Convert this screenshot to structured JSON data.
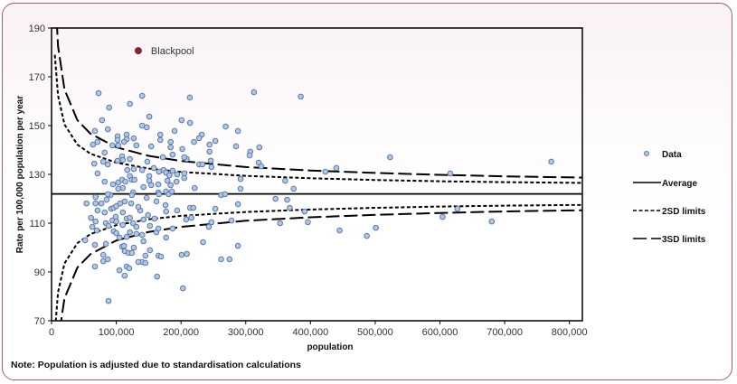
{
  "chart_data": {
    "type": "scatter",
    "xlabel": "population",
    "ylabel": "Rate per 100,000 population per year",
    "note": "Note: Population is adjusted due to standardisation calculations",
    "xlim": [
      0,
      820000
    ],
    "ylim": [
      70,
      190
    ],
    "x_ticks": [
      0,
      100000,
      200000,
      300000,
      400000,
      500000,
      600000,
      700000,
      800000
    ],
    "x_tick_labels": [
      "0",
      "100,000",
      "200,000",
      "300,000",
      "400,000",
      "500,000",
      "600,000",
      "700,000",
      "800,000"
    ],
    "y_ticks": [
      70,
      90,
      110,
      130,
      150,
      170,
      190
    ],
    "y_tick_labels": [
      "70",
      "90",
      "110",
      "130",
      "150",
      "170",
      "190"
    ],
    "grid": false,
    "legend_position": "right",
    "legend": {
      "data": "Data",
      "average": "Average",
      "sd2": "2SD limits",
      "sd3": "3SD limits"
    },
    "colors": {
      "point_fill": "#b3c7e3",
      "point_stroke": "#5a7aa8",
      "highlight": "#7b2a35",
      "lines": "#000000"
    },
    "highlight": {
      "label": "Blackpool",
      "x": 134000,
      "y": 180.7
    },
    "average": 122,
    "limits": {
      "population": [
        5000,
        10000,
        20000,
        40000,
        60000,
        100000,
        150000,
        200000,
        300000,
        400000,
        500000,
        600000,
        700000,
        820000
      ],
      "upper_2sd": [
        179.0,
        162.3,
        150.5,
        142.2,
        138.5,
        134.8,
        132.4,
        131.0,
        129.4,
        128.4,
        127.7,
        127.2,
        126.8,
        126.5
      ],
      "lower_2sd": [
        65.0,
        81.7,
        93.5,
        101.8,
        105.5,
        109.2,
        111.6,
        113.0,
        114.6,
        115.6,
        116.3,
        116.8,
        117.2,
        117.5
      ],
      "upper_3sd": [
        207.6,
        182.5,
        164.8,
        152.2,
        146.7,
        141.1,
        137.6,
        135.5,
        133.0,
        131.6,
        130.6,
        129.8,
        129.2,
        128.7
      ],
      "lower_3sd": [
        36.4,
        61.5,
        79.2,
        91.8,
        97.3,
        102.9,
        106.4,
        108.5,
        111.0,
        112.4,
        113.4,
        114.2,
        114.8,
        115.3
      ]
    },
    "points": [
      [
        213600,
        161.5
      ],
      [
        312700,
        163.7
      ],
      [
        385000,
        161.9
      ],
      [
        201000,
        152.2
      ],
      [
        214000,
        151.1
      ],
      [
        269000,
        149.6
      ],
      [
        288000,
        147.8
      ],
      [
        232000,
        146.3
      ],
      [
        228000,
        144.9
      ],
      [
        220000,
        143.3
      ],
      [
        253000,
        143.7
      ],
      [
        244000,
        142.2
      ],
      [
        285000,
        141.5
      ],
      [
        321000,
        141.1
      ],
      [
        202000,
        140.4
      ],
      [
        244000,
        139.3
      ],
      [
        307000,
        139.3
      ],
      [
        306000,
        137.8
      ],
      [
        523000,
        137.0
      ],
      [
        209000,
        136.3
      ],
      [
        246000,
        135.6
      ],
      [
        320000,
        134.8
      ],
      [
        228000,
        134.1
      ],
      [
        233000,
        134.1
      ],
      [
        247000,
        133.0
      ],
      [
        324000,
        133.3
      ],
      [
        423000,
        131.1
      ],
      [
        440000,
        132.6
      ],
      [
        205000,
        130.4
      ],
      [
        205000,
        128.5
      ],
      [
        292000,
        128.1
      ],
      [
        361000,
        127.4
      ],
      [
        221000,
        124.4
      ],
      [
        374000,
        124.1
      ],
      [
        262000,
        121.5
      ],
      [
        268000,
        121.9
      ],
      [
        292000,
        124.1
      ],
      [
        346000,
        120.0
      ],
      [
        364000,
        119.6
      ],
      [
        288000,
        117.8
      ],
      [
        214000,
        116.3
      ],
      [
        219000,
        116.3
      ],
      [
        253000,
        115.9
      ],
      [
        368000,
        116.3
      ],
      [
        391000,
        114.8
      ],
      [
        216000,
        112.2
      ],
      [
        208000,
        111.5
      ],
      [
        247000,
        110.4
      ],
      [
        278000,
        111.1
      ],
      [
        353000,
        110.0
      ],
      [
        396000,
        110.4
      ],
      [
        243000,
        108.5
      ],
      [
        445000,
        107.0
      ],
      [
        487000,
        104.8
      ],
      [
        501000,
        108.1
      ],
      [
        234000,
        102.2
      ],
      [
        288000,
        100.7
      ],
      [
        201000,
        97.0
      ],
      [
        209000,
        97.4
      ],
      [
        262000,
        95.2
      ],
      [
        275000,
        95.2
      ],
      [
        203000,
        83.3
      ],
      [
        772000,
        135.2
      ],
      [
        616000,
        130.4
      ],
      [
        627000,
        115.9
      ],
      [
        604000,
        112.6
      ],
      [
        680000,
        110.7
      ],
      [
        72600,
        163.3
      ],
      [
        140000,
        162.2
      ],
      [
        121000,
        158.9
      ],
      [
        89000,
        157.4
      ],
      [
        151000,
        153.7
      ],
      [
        78000,
        152.2
      ],
      [
        140000,
        150.0
      ],
      [
        147000,
        149.3
      ],
      [
        87000,
        148.5
      ],
      [
        67000,
        147.8
      ],
      [
        190000,
        147.8
      ],
      [
        116000,
        146.3
      ],
      [
        102000,
        145.6
      ],
      [
        168000,
        146.3
      ],
      [
        127000,
        144.8
      ],
      [
        116000,
        144.4
      ],
      [
        102000,
        144.1
      ],
      [
        168000,
        144.1
      ],
      [
        184000,
        143.3
      ],
      [
        71000,
        143.3
      ],
      [
        64000,
        142.2
      ],
      [
        112000,
        143.3
      ],
      [
        94000,
        141.9
      ],
      [
        103000,
        141.9
      ],
      [
        131000,
        141.9
      ],
      [
        154000,
        141.5
      ],
      [
        184000,
        141.1
      ],
      [
        82000,
        138.9
      ],
      [
        187000,
        138.1
      ],
      [
        172000,
        137.0
      ],
      [
        109000,
        137.4
      ],
      [
        121000,
        136.3
      ],
      [
        205000,
        137.0
      ],
      [
        66000,
        134.4
      ],
      [
        80000,
        135.2
      ],
      [
        87000,
        134.1
      ],
      [
        102000,
        135.6
      ],
      [
        110000,
        135.9
      ],
      [
        148000,
        135.2
      ],
      [
        117000,
        131.8
      ],
      [
        127000,
        132.2
      ],
      [
        140000,
        131.8
      ],
      [
        71000,
        130.4
      ],
      [
        158000,
        132.6
      ],
      [
        166000,
        131.1
      ],
      [
        173000,
        131.8
      ],
      [
        187000,
        131.5
      ],
      [
        177000,
        130.7
      ],
      [
        194000,
        130.0
      ],
      [
        82000,
        127.0
      ],
      [
        95000,
        125.9
      ],
      [
        103000,
        126.7
      ],
      [
        109000,
        127.8
      ],
      [
        114000,
        127.0
      ],
      [
        121000,
        129.3
      ],
      [
        124000,
        127.8
      ],
      [
        128000,
        127.8
      ],
      [
        110000,
        124.4
      ],
      [
        103000,
        124.1
      ],
      [
        142000,
        124.8
      ],
      [
        151000,
        129.3
      ],
      [
        151000,
        127.4
      ],
      [
        154000,
        125.6
      ],
      [
        165000,
        125.9
      ],
      [
        179000,
        127.4
      ],
      [
        182000,
        129.6
      ],
      [
        184000,
        125.6
      ],
      [
        193000,
        127.0
      ],
      [
        165000,
        122.6
      ],
      [
        126000,
        122.6
      ],
      [
        177000,
        123.0
      ],
      [
        54000,
        118.1
      ],
      [
        68000,
        120.7
      ],
      [
        68000,
        118.1
      ],
      [
        77000,
        118.1
      ],
      [
        85000,
        119.6
      ],
      [
        71000,
        115.2
      ],
      [
        82000,
        114.4
      ],
      [
        92000,
        115.9
      ],
      [
        96000,
        116.3
      ],
      [
        100000,
        117.0
      ],
      [
        106000,
        118.1
      ],
      [
        113000,
        118.9
      ],
      [
        110000,
        114.4
      ],
      [
        99000,
        112.6
      ],
      [
        94000,
        111.1
      ],
      [
        68000,
        110.7
      ],
      [
        63000,
        108.5
      ],
      [
        70000,
        107.0
      ],
      [
        52000,
        103.0
      ],
      [
        84000,
        110.0
      ],
      [
        88000,
        108.9
      ],
      [
        100000,
        110.7
      ],
      [
        110000,
        109.3
      ],
      [
        116000,
        111.9
      ],
      [
        121000,
        112.2
      ],
      [
        126000,
        110.0
      ],
      [
        131000,
        108.5
      ],
      [
        137000,
        115.2
      ],
      [
        149000,
        113.3
      ],
      [
        142000,
        111.5
      ],
      [
        159000,
        111.9
      ],
      [
        152000,
        108.9
      ],
      [
        131000,
        105.6
      ],
      [
        140000,
        105.2
      ],
      [
        142000,
        102.6
      ],
      [
        162000,
        106.3
      ],
      [
        177000,
        104.1
      ],
      [
        187000,
        107.8
      ],
      [
        165000,
        107.8
      ],
      [
        152000,
        98.9
      ],
      [
        145000,
        96.7
      ],
      [
        140000,
        94.1
      ],
      [
        165000,
        96.7
      ],
      [
        169000,
        96.3
      ],
      [
        109000,
        100.4
      ],
      [
        113000,
        98.5
      ],
      [
        119000,
        97.8
      ],
      [
        124000,
        97.8
      ],
      [
        127000,
        100.0
      ],
      [
        112000,
        100.7
      ],
      [
        84000,
        101.5
      ],
      [
        67000,
        101.1
      ],
      [
        80000,
        97.0
      ],
      [
        87000,
        95.2
      ],
      [
        80000,
        94.4
      ],
      [
        67000,
        92.2
      ],
      [
        105000,
        90.7
      ],
      [
        116000,
        92.2
      ],
      [
        120000,
        91.5
      ],
      [
        113000,
        88.5
      ],
      [
        163000,
        88.1
      ],
      [
        134000,
        94.1
      ],
      [
        145000,
        93.7
      ],
      [
        88000,
        78.1
      ],
      [
        96000,
        106.7
      ],
      [
        100000,
        105.9
      ],
      [
        105000,
        104.1
      ],
      [
        121000,
        106.3
      ],
      [
        116000,
        104.4
      ],
      [
        134000,
        116.7
      ],
      [
        147000,
        120.4
      ],
      [
        176000,
        117.4
      ],
      [
        177000,
        114.8
      ],
      [
        194000,
        115.2
      ],
      [
        162000,
        118.9
      ],
      [
        123000,
        118.1
      ],
      [
        91000,
        121.5
      ],
      [
        87000,
        121.9
      ],
      [
        124000,
        121.5
      ],
      [
        166000,
        121.9
      ],
      [
        181000,
        121.9
      ],
      [
        186000,
        123.0
      ],
      [
        61000,
        112.2
      ]
    ]
  }
}
